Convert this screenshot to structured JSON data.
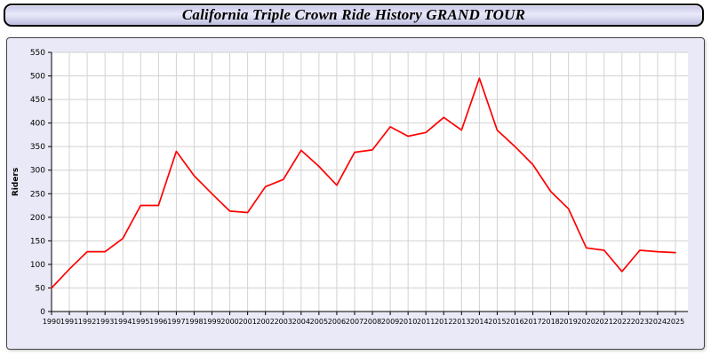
{
  "title": "California Triple Crown Ride History GRAND TOUR",
  "colors": {
    "line": "#ff0000",
    "plot_background": "#ffffff",
    "outer_background": "#e9e9f7",
    "grid": "#d2d2d2",
    "axis": "#000000"
  },
  "chart_data": {
    "type": "line",
    "title": "California Triple Crown Ride History GRAND TOUR",
    "xlabel": "",
    "ylabel": "Riders",
    "ylim": [
      0,
      550
    ],
    "y_ticks": [
      0,
      50,
      100,
      150,
      200,
      250,
      300,
      350,
      400,
      450,
      500,
      550
    ],
    "grid": true,
    "legend_position": "none",
    "x": [
      1990,
      1991,
      1992,
      1993,
      1994,
      1995,
      1996,
      1997,
      1998,
      1999,
      2000,
      2001,
      2002,
      2003,
      2004,
      2005,
      2006,
      2007,
      2008,
      2009,
      2010,
      2011,
      2012,
      2013,
      2014,
      2015,
      2016,
      2017,
      2018,
      2019,
      2020,
      2021,
      2022,
      2023,
      2024,
      2025
    ],
    "series": [
      {
        "name": "Riders",
        "color": "#ff0000",
        "values": [
          50,
          90,
          127,
          127,
          155,
          225,
          225,
          340,
          288,
          250,
          213,
          210,
          265,
          280,
          342,
          308,
          268,
          338,
          343,
          392,
          372,
          380,
          412,
          385,
          495,
          385,
          350,
          312,
          255,
          218,
          135,
          130,
          85,
          130,
          127,
          125
        ]
      }
    ]
  }
}
